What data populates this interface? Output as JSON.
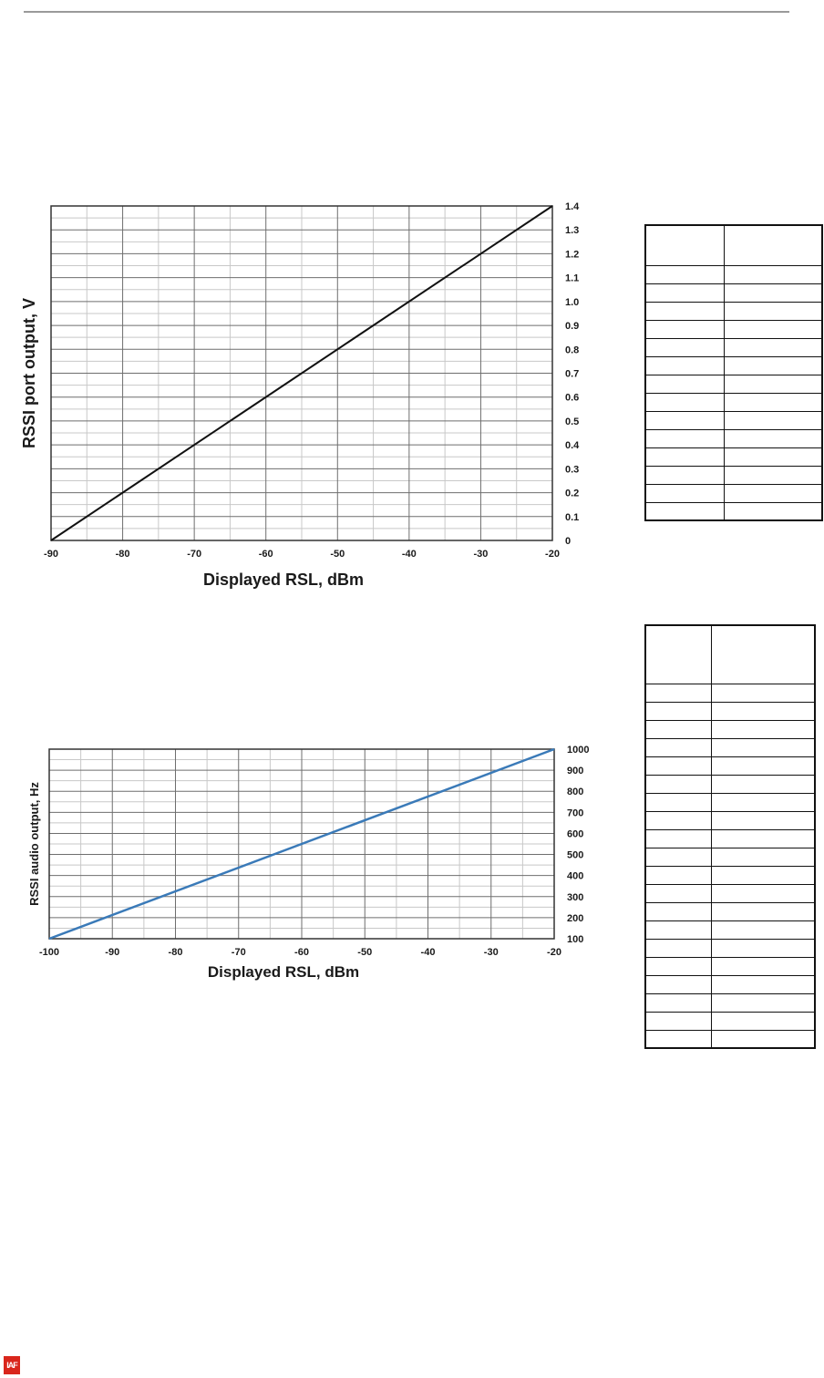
{
  "chart_data": [
    {
      "type": "line",
      "title": "",
      "xlabel": "Displayed RSL, dBm",
      "ylabel": "RSSI port output, V",
      "xlim": [
        -90,
        -20
      ],
      "ylim": [
        0,
        1.4
      ],
      "x_ticks": [
        "-90",
        "-80",
        "-70",
        "-60",
        "-50",
        "-40",
        "-30",
        "-20"
      ],
      "y_ticks": [
        "0",
        "0.1",
        "0.2",
        "0.3",
        "0.4",
        "0.5",
        "0.6",
        "0.7",
        "0.8",
        "0.9",
        "1.0",
        "1.1",
        "1.2",
        "1.3",
        "1.4"
      ],
      "y_axis_side": "right",
      "grid": true,
      "series": [
        {
          "x": [
            -90,
            -20
          ],
          "y": [
            0,
            1.4
          ],
          "color": "#111111"
        }
      ]
    },
    {
      "type": "line",
      "title": "",
      "xlabel": "Displayed RSL, dBm",
      "ylabel": "RSSI audio output, Hz",
      "xlim": [
        -100,
        -20
      ],
      "ylim": [
        100,
        1000
      ],
      "x_ticks": [
        "-100",
        "-90",
        "-80",
        "-70",
        "-60",
        "-50",
        "-40",
        "-30",
        "-20"
      ],
      "y_ticks": [
        "100",
        "200",
        "300",
        "400",
        "500",
        "600",
        "700",
        "800",
        "900",
        "1000"
      ],
      "y_axis_side": "right",
      "grid": true,
      "series": [
        {
          "x": [
            -100,
            -20
          ],
          "y": [
            100,
            1000
          ],
          "color": "#3a7ab8"
        }
      ]
    }
  ],
  "tables": [
    {
      "rows": 15,
      "columns": 2,
      "header_row": true
    },
    {
      "rows": 21,
      "columns": 2,
      "header_row": true
    }
  ],
  "logo": {
    "text": "IAF",
    "color": "#d9261c"
  }
}
